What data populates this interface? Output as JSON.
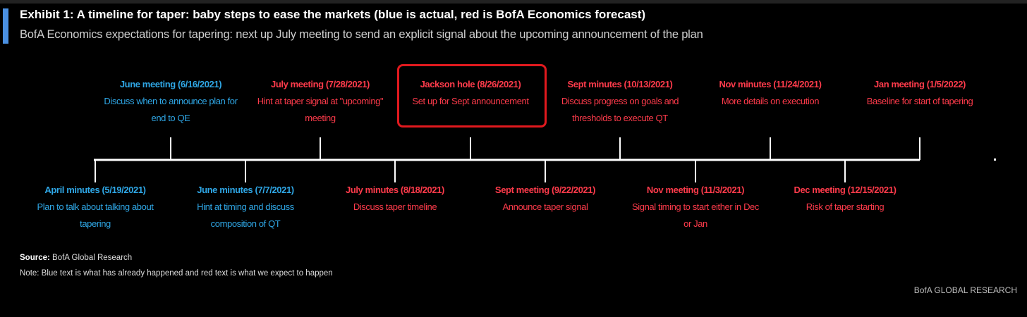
{
  "header": {
    "title": "Exhibit 1: A timeline for taper: baby steps to ease the markets (blue is actual, red is BofA Economics forecast)",
    "subtitle": "BofA Economics expectations for tapering: next up July meeting to send an explicit signal about the upcoming announcement of the plan"
  },
  "colors": {
    "actual": "#2fa7e6",
    "forecast": "#ff3b4b",
    "highlight": "#e1191e",
    "accent": "#4a90e2"
  },
  "events": [
    {
      "id": "april-minutes",
      "status": "actual",
      "title": "April minutes (5/19/2021)",
      "lines": [
        "Plan to talk about talking about",
        "tapering"
      ]
    },
    {
      "id": "june-meeting",
      "status": "actual",
      "title": "June meeting (6/16/2021)",
      "lines": [
        "Discuss when to announce plan for",
        "end to QE"
      ]
    },
    {
      "id": "june-minutes",
      "status": "actual",
      "title": "June minutes (7/7/2021)",
      "lines": [
        "Hint at timing and discuss",
        "composition of QT"
      ]
    },
    {
      "id": "july-meeting",
      "status": "forecast",
      "title": "July meeting (7/28/2021)",
      "lines": [
        "Hint at taper signal at \"upcoming\"",
        "meeting"
      ]
    },
    {
      "id": "july-minutes",
      "status": "forecast",
      "title": "July minutes (8/18/2021)",
      "lines": [
        "Discuss taper timeline"
      ]
    },
    {
      "id": "jackson-hole",
      "status": "forecast",
      "title": "Jackson hole (8/26/2021)",
      "lines": [
        "Set up for Sept announcement"
      ],
      "highlighted": true
    },
    {
      "id": "sept-meeting",
      "status": "forecast",
      "title": "Sept meeting (9/22/2021)",
      "lines": [
        "Announce taper signal"
      ]
    },
    {
      "id": "sept-minutes",
      "status": "forecast",
      "title": "Sept minutes (10/13/2021)",
      "lines": [
        "Discuss progress on goals and",
        "thresholds to execute QT"
      ]
    },
    {
      "id": "nov-meeting",
      "status": "forecast",
      "title": "Nov meeting (11/3/2021)",
      "lines": [
        "Signal timing to start either in Dec",
        "or Jan"
      ]
    },
    {
      "id": "nov-minutes",
      "status": "forecast",
      "title": "Nov minutes (11/24/2021)",
      "lines": [
        "More details on execution"
      ]
    },
    {
      "id": "dec-meeting",
      "status": "forecast",
      "title": "Dec meeting (12/15/2021)",
      "lines": [
        "Risk of taper starting"
      ]
    },
    {
      "id": "jan-meeting",
      "status": "forecast",
      "title": "Jan meeting (1/5/2022)",
      "lines": [
        "Baseline for start of tapering"
      ]
    }
  ],
  "footer": {
    "source_label": "Source:",
    "source_text": "BofA Global Research",
    "note": "Note: Blue text is what has already happened and red text is what we expect to happen",
    "brand": "BofA GLOBAL RESEARCH"
  }
}
